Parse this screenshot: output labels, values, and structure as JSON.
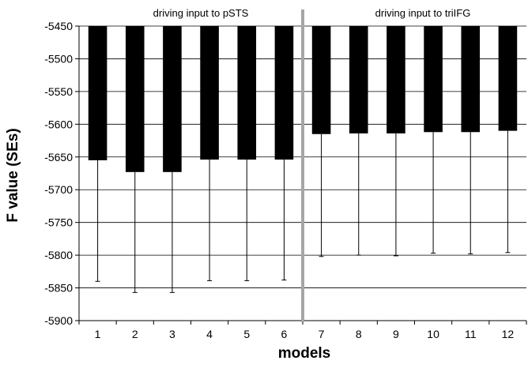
{
  "chart_data": {
    "type": "bar",
    "xlabel": "models",
    "ylabel": "F value (SEs)",
    "ylim": [
      -5900,
      -5450
    ],
    "yticks": [
      -5450,
      -5500,
      -5550,
      -5600,
      -5650,
      -5700,
      -5750,
      -5800,
      -5850,
      -5900
    ],
    "categories": [
      "1",
      "2",
      "3",
      "4",
      "5",
      "6",
      "7",
      "8",
      "9",
      "10",
      "11",
      "12"
    ],
    "values": [
      -5655,
      -5673,
      -5673,
      -5654,
      -5654,
      -5654,
      -5615,
      -5614,
      -5614,
      -5612,
      -5612,
      -5610
    ],
    "error_lower": [
      -5840,
      -5857,
      -5857,
      -5839,
      -5839,
      -5838,
      -5802,
      -5800,
      -5801,
      -5797,
      -5798,
      -5796
    ],
    "baseline": -5450,
    "bar_color": "#000000",
    "divider_color": "#a6a6a6",
    "grid": true,
    "panels": [
      {
        "label": "driving input to pSTS",
        "models": [
          "1",
          "2",
          "3",
          "4",
          "5",
          "6"
        ]
      },
      {
        "label": "driving input to triIFG",
        "models": [
          "7",
          "8",
          "9",
          "10",
          "11",
          "12"
        ]
      }
    ]
  }
}
